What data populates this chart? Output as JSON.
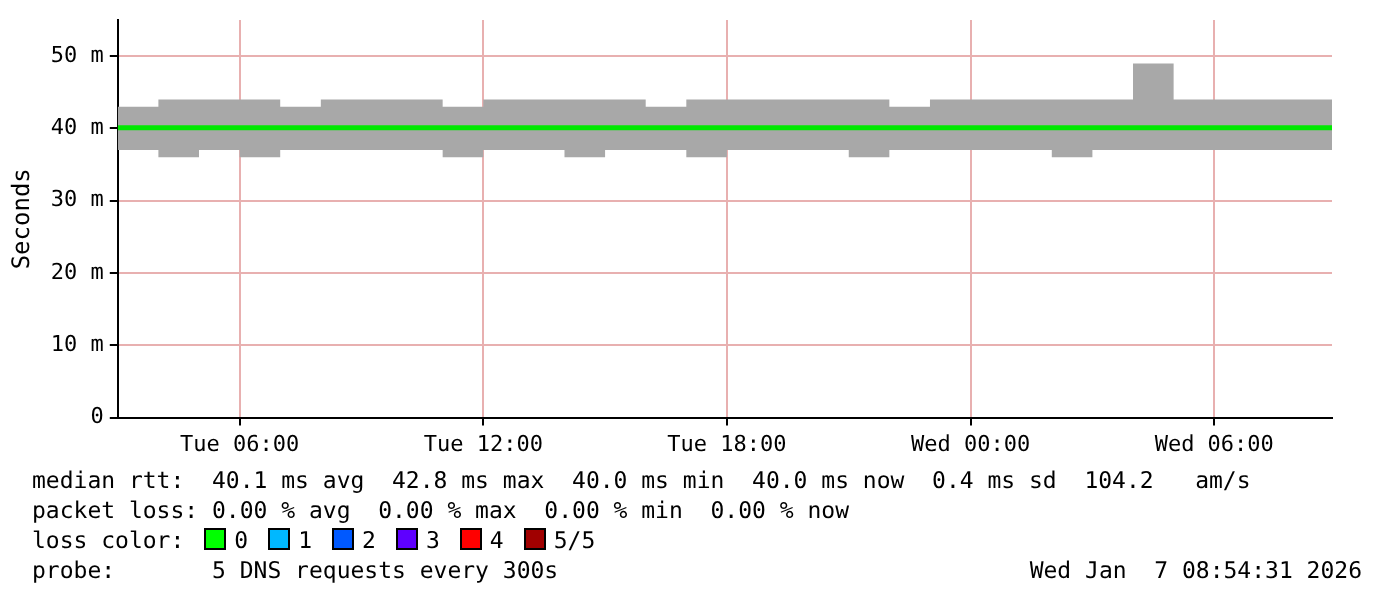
{
  "chart_data": {
    "type": "line",
    "ylabel": "Seconds",
    "xlim": [
      "2026-01-06T03:00",
      "2026-01-07T08:54"
    ],
    "xticks": [
      {
        "value": "2026-01-06T06:00",
        "label": "Tue 06:00"
      },
      {
        "value": "2026-01-06T12:00",
        "label": "Tue 12:00"
      },
      {
        "value": "2026-01-06T18:00",
        "label": "Tue 18:00"
      },
      {
        "value": "2026-01-07T00:00",
        "label": "Wed 00:00"
      },
      {
        "value": "2026-01-07T06:00",
        "label": "Wed 06:00"
      }
    ],
    "ylim": [
      0,
      55
    ],
    "yticks": [
      {
        "value": 0,
        "label": "0"
      },
      {
        "value": 10,
        "label": "10 m"
      },
      {
        "value": 20,
        "label": "20 m"
      },
      {
        "value": 30,
        "label": "30 m"
      },
      {
        "value": 40,
        "label": "40 m"
      },
      {
        "value": 50,
        "label": "50 m"
      }
    ],
    "grid": true,
    "legend": false,
    "marker": "none",
    "line_style": "solid",
    "x": [
      "2026-01-06T03:00",
      "2026-01-06T04:00",
      "2026-01-06T05:00",
      "2026-01-06T06:00",
      "2026-01-06T07:00",
      "2026-01-06T08:00",
      "2026-01-06T09:00",
      "2026-01-06T10:00",
      "2026-01-06T11:00",
      "2026-01-06T12:00",
      "2026-01-06T13:00",
      "2026-01-06T14:00",
      "2026-01-06T15:00",
      "2026-01-06T16:00",
      "2026-01-06T17:00",
      "2026-01-06T18:00",
      "2026-01-06T19:00",
      "2026-01-06T20:00",
      "2026-01-06T21:00",
      "2026-01-06T22:00",
      "2026-01-06T23:00",
      "2026-01-07T00:00",
      "2026-01-07T01:00",
      "2026-01-07T02:00",
      "2026-01-07T03:00",
      "2026-01-07T04:00",
      "2026-01-07T05:00",
      "2026-01-07T06:00",
      "2026-01-07T07:00",
      "2026-01-07T08:00",
      "2026-01-07T08:54"
    ],
    "series": [
      {
        "color": "#00e800",
        "values": [
          40.1,
          40.1,
          40.1,
          40.1,
          40.1,
          40.1,
          40.1,
          40.1,
          40.1,
          40.1,
          40.1,
          40.1,
          40.1,
          40.1,
          40.1,
          40.1,
          40.1,
          40.1,
          40.1,
          40.1,
          40.1,
          40.1,
          40.1,
          40.1,
          40.1,
          40.1,
          40.1,
          40.1,
          40.1,
          40.1,
          40.1
        ],
        "lower": [
          37,
          36,
          37,
          36,
          37,
          37,
          37,
          37,
          36,
          37,
          37,
          36,
          37,
          37,
          36,
          37,
          37,
          37,
          36,
          37,
          37,
          37,
          37,
          36,
          37,
          37,
          37,
          37,
          37,
          37,
          37
        ],
        "upper": [
          43,
          44,
          44,
          44,
          43,
          44,
          44,
          44,
          43,
          44,
          44,
          44,
          44,
          43,
          44,
          44,
          44,
          44,
          44,
          43,
          44,
          44,
          44,
          44,
          44,
          49,
          44,
          44,
          44,
          44,
          44
        ]
      }
    ],
    "annotations": [
      "median rtt:  40.1 ms avg  42.8 ms max  40.0 ms min  40.0 ms now  0.4 ms sd  104.2   am/s",
      "packet loss: 0.00 % avg  0.00 % max  0.00 % min  0.00 % now",
      "loss color:",
      "0",
      "1",
      "2",
      "3",
      "4",
      "5/5",
      "probe:       5 DNS requests every 300s",
      "Wed Jan  7 08:54:31 2026"
    ]
  }
}
